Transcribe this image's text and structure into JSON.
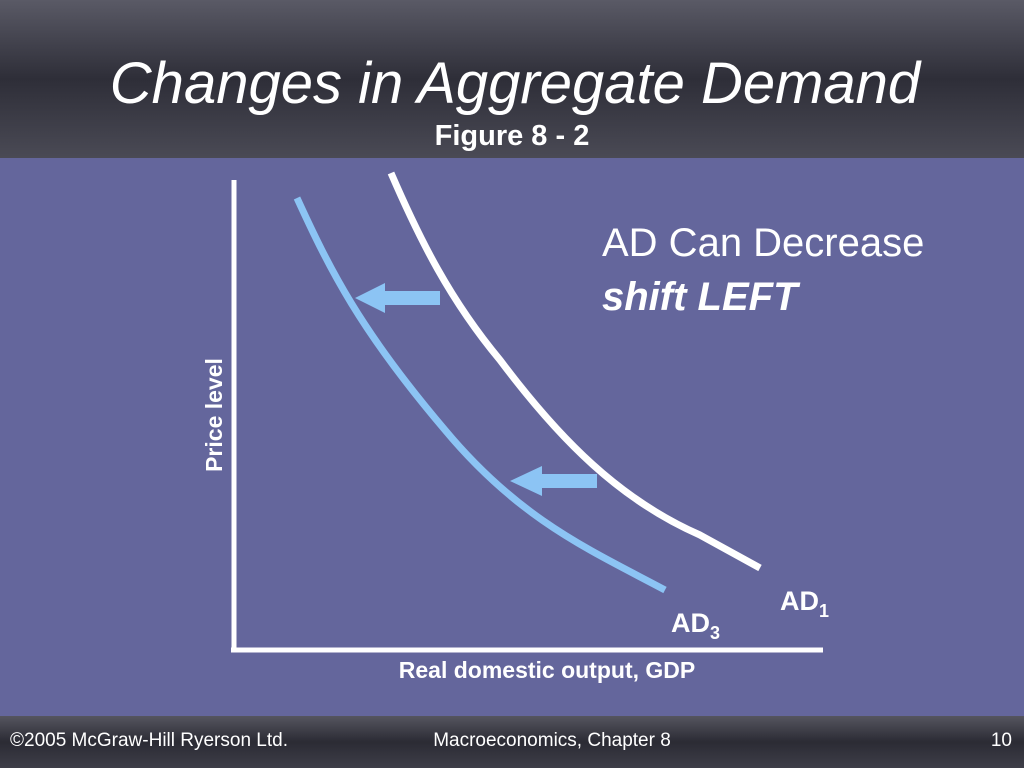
{
  "header": {
    "title": "Changes in Aggregate Demand",
    "subtitle": "Figure 8 - 2"
  },
  "diagram": {
    "y_axis_label": "Price level",
    "x_axis_label": "Real domestic output, GDP",
    "curves": [
      {
        "base": "AD",
        "sub": "1"
      },
      {
        "base": "AD",
        "sub": "3"
      }
    ]
  },
  "callout": {
    "line1": "AD Can Decrease",
    "line2": "shift LEFT"
  },
  "footer": {
    "left": "©2005 McGraw-Hill Ryerson Ltd.",
    "center": "Macroeconomics, Chapter 8",
    "right": "10"
  }
}
